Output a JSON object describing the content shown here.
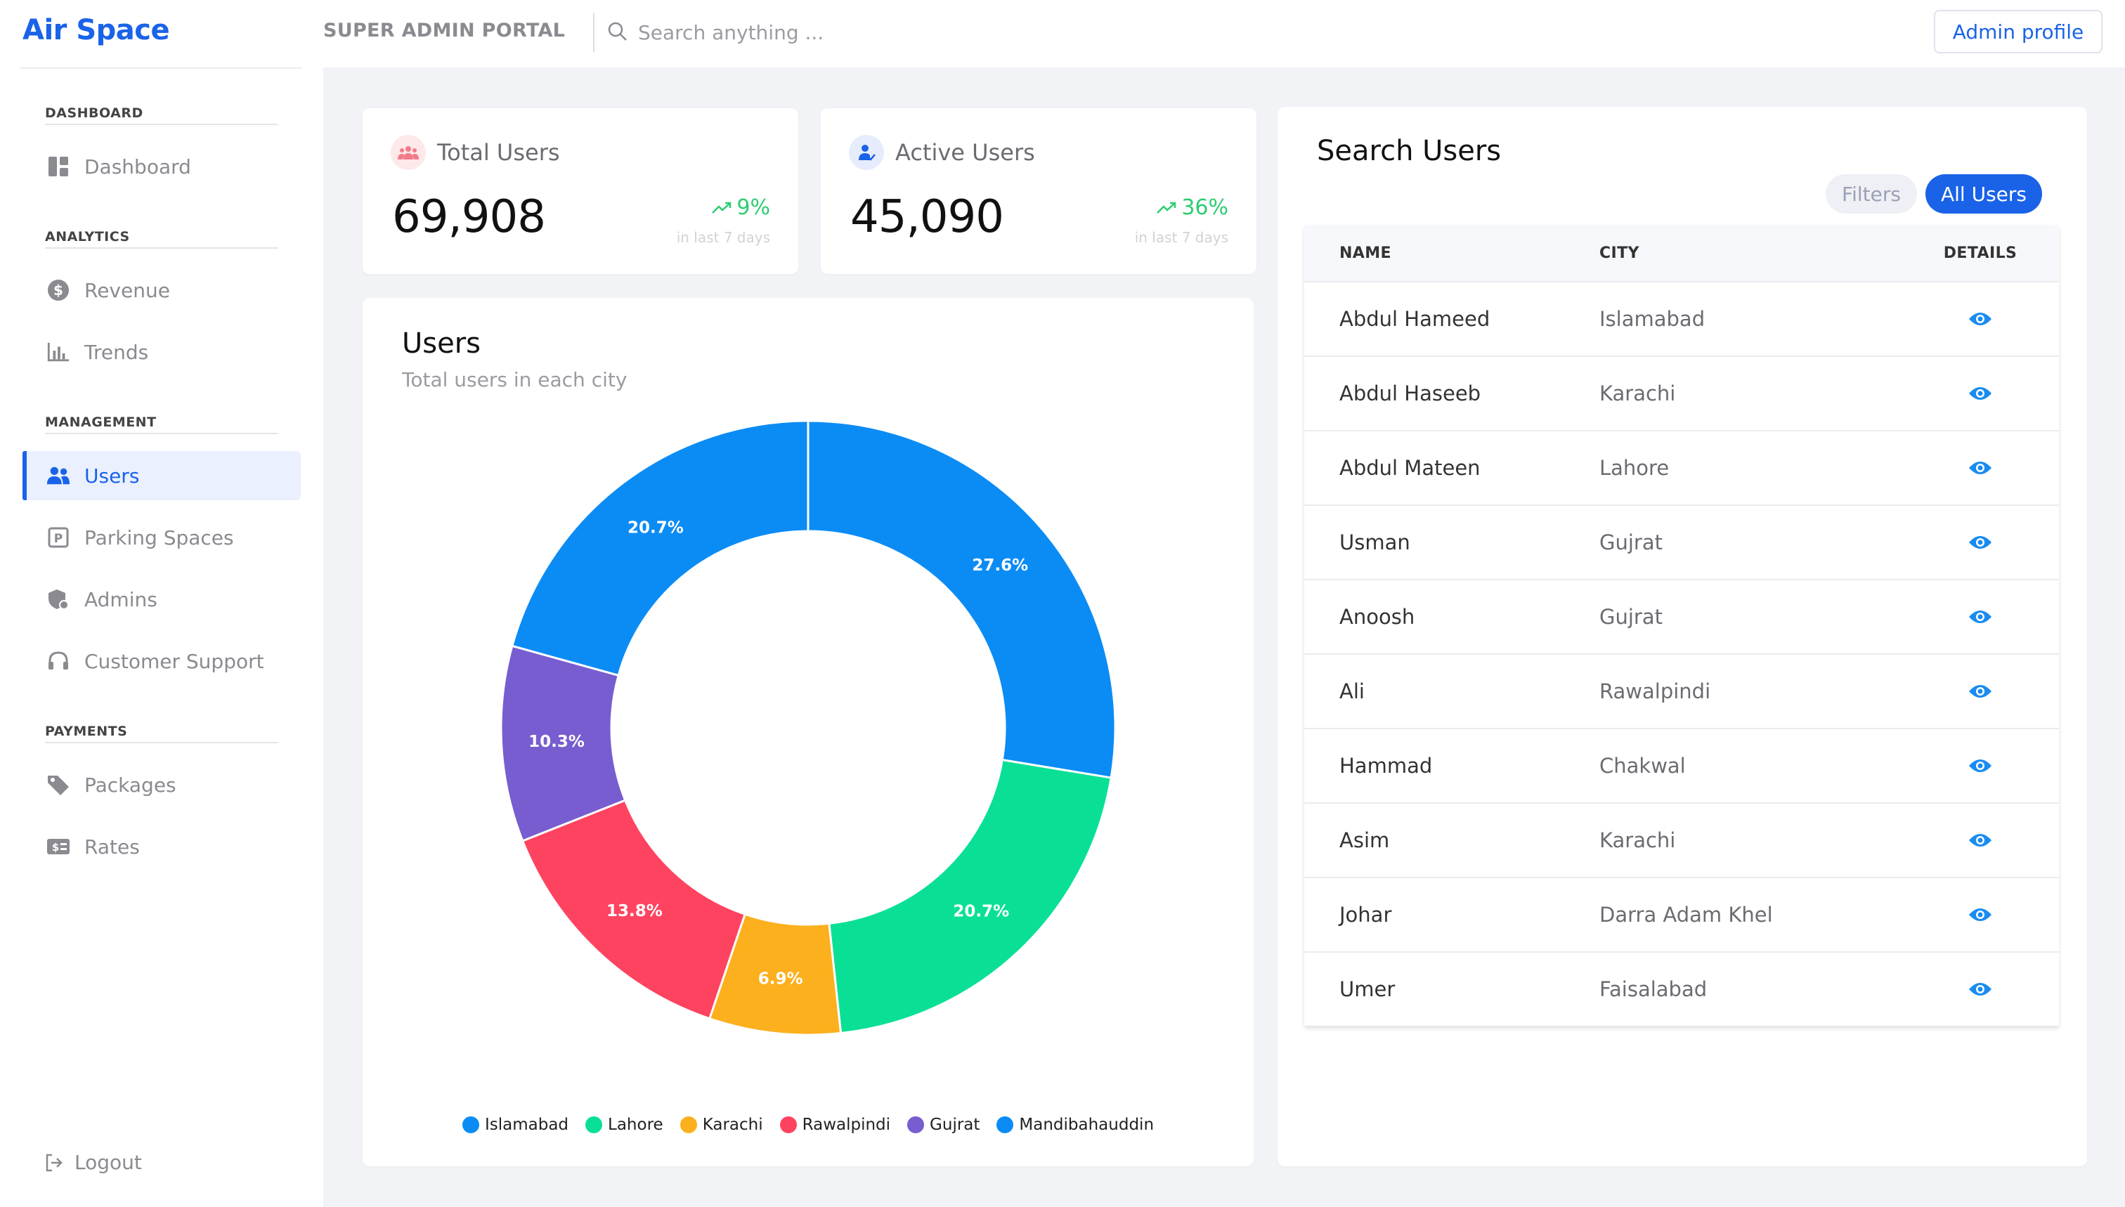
{
  "app": {
    "name": "Air Space"
  },
  "sidebar": {
    "sections": [
      {
        "title": "DASHBOARD",
        "items": [
          {
            "label": "Dashboard",
            "icon": "dashboard-icon"
          }
        ]
      },
      {
        "title": "ANALYTICS",
        "items": [
          {
            "label": "Revenue",
            "icon": "dollar-icon"
          },
          {
            "label": "Trends",
            "icon": "bar-chart-icon"
          }
        ]
      },
      {
        "title": "MANAGEMENT",
        "items": [
          {
            "label": "Users",
            "icon": "users-icon",
            "active": true
          },
          {
            "label": "Parking Spaces",
            "icon": "parking-icon"
          },
          {
            "label": "Admins",
            "icon": "admin-shield-icon"
          },
          {
            "label": "Customer Support",
            "icon": "headset-icon"
          }
        ]
      },
      {
        "title": "PAYMENTS",
        "items": [
          {
            "label": "Packages",
            "icon": "tag-icon"
          },
          {
            "label": "Rates",
            "icon": "money-icon"
          }
        ]
      }
    ],
    "logout": "Logout"
  },
  "header": {
    "portal_title": "SUPER ADMIN PORTAL",
    "search_placeholder": "Search anything ...",
    "admin_button": "Admin profile"
  },
  "stats": {
    "total_users": {
      "title": "Total Users",
      "value": "69,908",
      "change": "9%",
      "period": "in last 7 days"
    },
    "active_users": {
      "title": "Active Users",
      "value": "45,090",
      "change": "36%",
      "period": "in last 7 days"
    }
  },
  "chart": {
    "title": "Users",
    "subtitle": "Total users in each city"
  },
  "chart_data": {
    "type": "pie",
    "title": "Users",
    "subtitle": "Total users in each city",
    "categories": [
      "Islamabad",
      "Lahore",
      "Karachi",
      "Rawalpindi",
      "Gujrat",
      "Mandibahauddin"
    ],
    "values": [
      27.6,
      20.7,
      6.9,
      13.8,
      10.3,
      20.7
    ],
    "labels": [
      "27.6%",
      "20.7%",
      "6.9%",
      "13.8%",
      "10.3%",
      "20.7%"
    ],
    "colors": [
      "#0b8cf5",
      "#0ae095",
      "#fcb01e",
      "#fe4360",
      "#775dd0",
      "#0b8cf5"
    ],
    "donut": true,
    "legend": "bottom"
  },
  "users_panel": {
    "title": "Search Users",
    "filters_label": "Filters",
    "all_users_label": "All Users",
    "columns": [
      "NAME",
      "CITY",
      "DETAILS"
    ],
    "rows": [
      {
        "name": "Abdul Hameed",
        "city": "Islamabad"
      },
      {
        "name": "Abdul Haseeb",
        "city": "Karachi"
      },
      {
        "name": "Abdul Mateen",
        "city": "Lahore"
      },
      {
        "name": "Usman",
        "city": "Gujrat"
      },
      {
        "name": "Anoosh",
        "city": "Gujrat"
      },
      {
        "name": "Ali",
        "city": "Rawalpindi"
      },
      {
        "name": "Hammad",
        "city": "Chakwal"
      },
      {
        "name": "Asim",
        "city": "Karachi"
      },
      {
        "name": "Johar",
        "city": "Darra Adam Khel"
      },
      {
        "name": "Umer",
        "city": "Faisalabad"
      }
    ]
  },
  "colors": {
    "accent": "#1a63e8",
    "positive": "#2ecc71"
  }
}
